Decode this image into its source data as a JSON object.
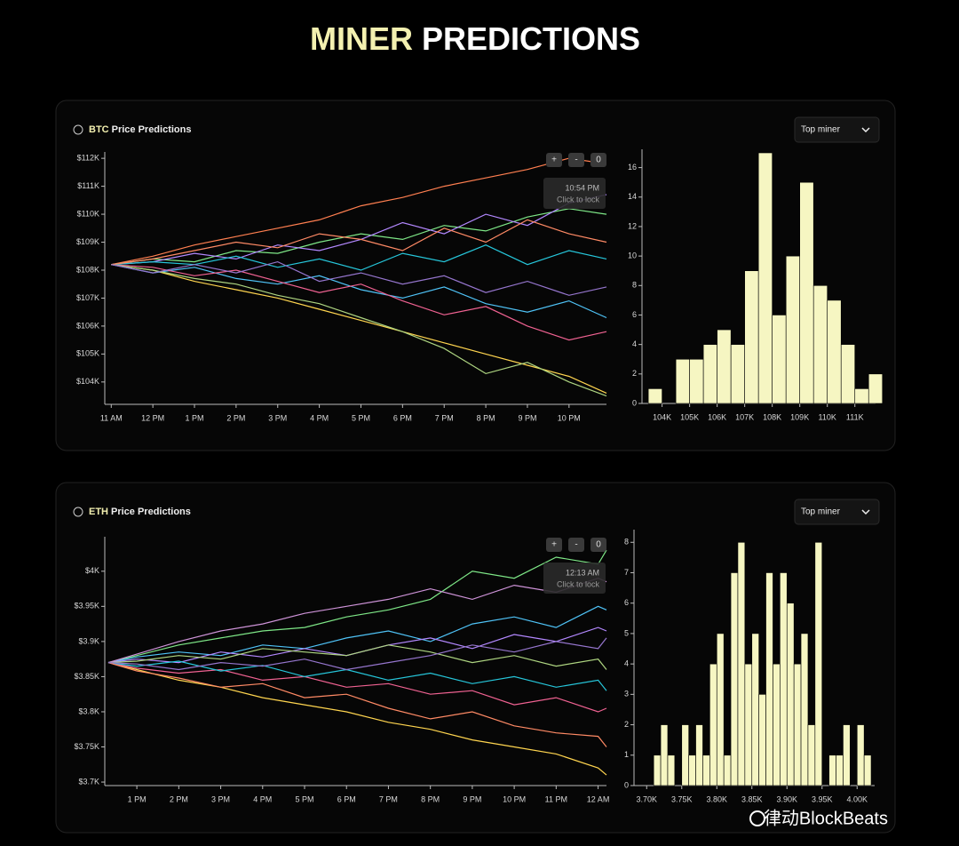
{
  "page": {
    "title_accent": "MINER",
    "title_rest": "PREDICTIONS",
    "watermark": "律动BlockBeats"
  },
  "panels": [
    {
      "label_accent": "BTC",
      "label_rest": "Price Predictions",
      "dropdown": "Top miner",
      "buttons": [
        "+",
        "-",
        "0"
      ],
      "tooltip_time": "10:54 PM",
      "tooltip_hint": "Click to lock"
    },
    {
      "label_accent": "ETH",
      "label_rest": "Price Predictions",
      "dropdown": "Top miner",
      "buttons": [
        "+",
        "-",
        "0"
      ],
      "tooltip_time": "12:13 AM",
      "tooltip_hint": "Click to lock"
    }
  ],
  "chart_data": [
    {
      "type": "line",
      "x": [
        11,
        12,
        13,
        14,
        15,
        16,
        17,
        18,
        19,
        20,
        21,
        22,
        22.9
      ],
      "xlim": [
        10.93,
        22.9
      ],
      "ylim": [
        103200,
        112100
      ],
      "xticks": [
        {
          "value": 11,
          "label": "11 AM"
        },
        {
          "value": 12,
          "label": "12 PM"
        },
        {
          "value": 13,
          "label": "1 PM"
        },
        {
          "value": 14,
          "label": "2 PM"
        },
        {
          "value": 15,
          "label": "3 PM"
        },
        {
          "value": 16,
          "label": "4 PM"
        },
        {
          "value": 17,
          "label": "5 PM"
        },
        {
          "value": 18,
          "label": "6 PM"
        },
        {
          "value": 19,
          "label": "7 PM"
        },
        {
          "value": 20,
          "label": "8 PM"
        },
        {
          "value": 21,
          "label": "9 PM"
        },
        {
          "value": 22,
          "label": "10 PM"
        }
      ],
      "yticks": [
        {
          "value": 104000,
          "label": "$104K"
        },
        {
          "value": 105000,
          "label": "$105K"
        },
        {
          "value": 106000,
          "label": "$106K"
        },
        {
          "value": 107000,
          "label": "$107K"
        },
        {
          "value": 108000,
          "label": "$108K"
        },
        {
          "value": 109000,
          "label": "$109K"
        },
        {
          "value": 110000,
          "label": "$110K"
        },
        {
          "value": 111000,
          "label": "$111K"
        },
        {
          "value": 112000,
          "label": "$112K"
        }
      ],
      "series": [
        {
          "color": "#ff7f50",
          "values": [
            108200,
            108500,
            108900,
            109200,
            109500,
            109800,
            110300,
            110600,
            111000,
            111300,
            111600,
            112000,
            111800
          ]
        },
        {
          "color": "#ffd54f",
          "values": [
            108200,
            108000,
            107600,
            107300,
            107000,
            106600,
            106200,
            105800,
            105400,
            105000,
            104600,
            104200,
            103600
          ]
        },
        {
          "color": "#7ee787",
          "values": [
            108200,
            108400,
            108300,
            108700,
            108600,
            109000,
            109300,
            109100,
            109600,
            109400,
            109900,
            110200,
            110000
          ]
        },
        {
          "color": "#4fc3f7",
          "values": [
            108200,
            107900,
            108100,
            107700,
            107500,
            107800,
            107300,
            107000,
            107400,
            106800,
            106500,
            106900,
            106300
          ]
        },
        {
          "color": "#b388ff",
          "values": [
            108200,
            108300,
            108600,
            108400,
            108900,
            108700,
            109100,
            109700,
            109300,
            110000,
            109600,
            110400,
            110700
          ]
        },
        {
          "color": "#f06292",
          "values": [
            108200,
            108100,
            107800,
            108000,
            107600,
            107200,
            107500,
            106900,
            106400,
            106700,
            106000,
            105500,
            105800
          ]
        },
        {
          "color": "#26c6da",
          "values": [
            108200,
            108300,
            108200,
            108500,
            108100,
            108400,
            108000,
            108600,
            108300,
            108900,
            108200,
            108700,
            108400
          ]
        },
        {
          "color": "#aed581",
          "values": [
            108200,
            108000,
            107700,
            107500,
            107100,
            106800,
            106300,
            105800,
            105200,
            104300,
            104700,
            104000,
            103500
          ]
        },
        {
          "color": "#ff8a65",
          "values": [
            108200,
            108400,
            108700,
            109000,
            108800,
            109300,
            109100,
            108700,
            109500,
            109000,
            109800,
            109300,
            109000
          ]
        },
        {
          "color": "#9575cd",
          "values": [
            108200,
            107900,
            108200,
            107900,
            108300,
            107600,
            107900,
            107500,
            107800,
            107200,
            107600,
            107100,
            107400
          ]
        }
      ]
    },
    {
      "type": "histogram",
      "color": "#f6f6c2",
      "bins": [
        103500,
        104000,
        104500,
        105000,
        105500,
        106000,
        106500,
        107000,
        107500,
        108000,
        108500,
        109000,
        109500,
        110000,
        110500,
        111000,
        111500,
        112000
      ],
      "values": [
        1,
        0,
        3,
        3,
        4,
        5,
        4,
        9,
        17,
        6,
        10,
        15,
        8,
        7,
        4,
        1,
        2
      ],
      "xlim": [
        103400,
        111750
      ],
      "ylim": [
        0,
        17
      ],
      "xticks": [
        {
          "value": 104000,
          "label": "104K"
        },
        {
          "value": 105000,
          "label": "105K"
        },
        {
          "value": 106000,
          "label": "106K"
        },
        {
          "value": 107000,
          "label": "107K"
        },
        {
          "value": 108000,
          "label": "108K"
        },
        {
          "value": 109000,
          "label": "109K"
        },
        {
          "value": 110000,
          "label": "110K"
        },
        {
          "value": 111000,
          "label": "111K"
        }
      ],
      "yticks": [
        0,
        2,
        4,
        6,
        8,
        10,
        12,
        14,
        16
      ]
    },
    {
      "type": "line",
      "x": [
        12.32,
        13,
        14,
        15,
        16,
        17,
        18,
        19,
        20,
        21,
        22,
        23,
        24,
        24.2
      ],
      "xlim": [
        12.32,
        24.2
      ],
      "ylim": [
        3695,
        4044
      ],
      "xticks": [
        {
          "value": 13,
          "label": "1 PM"
        },
        {
          "value": 14,
          "label": "2 PM"
        },
        {
          "value": 15,
          "label": "3 PM"
        },
        {
          "value": 16,
          "label": "4 PM"
        },
        {
          "value": 17,
          "label": "5 PM"
        },
        {
          "value": 18,
          "label": "6 PM"
        },
        {
          "value": 19,
          "label": "7 PM"
        },
        {
          "value": 20,
          "label": "8 PM"
        },
        {
          "value": 21,
          "label": "9 PM"
        },
        {
          "value": 22,
          "label": "10 PM"
        },
        {
          "value": 23,
          "label": "11 PM"
        },
        {
          "value": 24,
          "label": "12 AM"
        }
      ],
      "yticks": [
        {
          "value": 3700,
          "label": "$3.7K"
        },
        {
          "value": 3750,
          "label": "$3.75K"
        },
        {
          "value": 3800,
          "label": "$3.8K"
        },
        {
          "value": 3850,
          "label": "$3.85K"
        },
        {
          "value": 3900,
          "label": "$3.9K"
        },
        {
          "value": 3950,
          "label": "$3.95K"
        },
        {
          "value": 4000,
          "label": "$4K"
        }
      ],
      "series": [
        {
          "color": "#7ee787",
          "values": [
            3870,
            3880,
            3895,
            3905,
            3915,
            3920,
            3935,
            3945,
            3960,
            4000,
            3990,
            4020,
            4010,
            4030
          ]
        },
        {
          "color": "#ffd54f",
          "values": [
            3870,
            3860,
            3845,
            3835,
            3820,
            3810,
            3800,
            3785,
            3775,
            3760,
            3750,
            3740,
            3720,
            3710
          ]
        },
        {
          "color": "#4fc3f7",
          "values": [
            3870,
            3878,
            3885,
            3880,
            3895,
            3890,
            3905,
            3915,
            3900,
            3925,
            3935,
            3920,
            3950,
            3945
          ]
        },
        {
          "color": "#f06292",
          "values": [
            3870,
            3862,
            3855,
            3860,
            3845,
            3850,
            3835,
            3840,
            3825,
            3830,
            3810,
            3820,
            3800,
            3805
          ]
        },
        {
          "color": "#b388ff",
          "values": [
            3870,
            3875,
            3870,
            3885,
            3878,
            3890,
            3880,
            3895,
            3905,
            3890,
            3910,
            3900,
            3920,
            3915
          ]
        },
        {
          "color": "#26c6da",
          "values": [
            3870,
            3865,
            3872,
            3858,
            3866,
            3850,
            3860,
            3845,
            3855,
            3840,
            3850,
            3835,
            3845,
            3830
          ]
        },
        {
          "color": "#ce93d8",
          "values": [
            3870,
            3882,
            3900,
            3915,
            3925,
            3940,
            3950,
            3960,
            3975,
            3960,
            3980,
            3970,
            3990,
            3985
          ]
        },
        {
          "color": "#ff8a65",
          "values": [
            3870,
            3858,
            3848,
            3835,
            3840,
            3820,
            3825,
            3805,
            3790,
            3800,
            3780,
            3770,
            3765,
            3750
          ]
        },
        {
          "color": "#aed581",
          "values": [
            3870,
            3872,
            3880,
            3875,
            3890,
            3885,
            3880,
            3895,
            3885,
            3870,
            3880,
            3865,
            3875,
            3860
          ]
        },
        {
          "color": "#9575cd",
          "values": [
            3870,
            3868,
            3860,
            3870,
            3865,
            3875,
            3860,
            3870,
            3880,
            3895,
            3885,
            3900,
            3890,
            3905
          ]
        }
      ]
    },
    {
      "type": "histogram",
      "color": "#f6f6c2",
      "bins": [
        3710,
        3720,
        3730,
        3740,
        3750,
        3760,
        3770,
        3780,
        3790,
        3800,
        3810,
        3820,
        3830,
        3840,
        3850,
        3860,
        3870,
        3880,
        3890,
        3900,
        3910,
        3920,
        3930,
        3940,
        3950,
        3960,
        3970,
        3980,
        3990,
        4000,
        4010,
        4020
      ],
      "values": [
        1,
        2,
        1,
        0,
        2,
        1,
        2,
        1,
        4,
        5,
        1,
        7,
        8,
        4,
        5,
        3,
        7,
        4,
        7,
        6,
        4,
        5,
        2,
        8,
        0,
        1,
        1,
        2,
        0,
        2,
        1
      ],
      "xlim": [
        3687,
        4025
      ],
      "ylim": [
        0,
        8.3
      ],
      "xticks": [
        {
          "value": 3700,
          "label": "3.70K"
        },
        {
          "value": 3750,
          "label": "3.75K"
        },
        {
          "value": 3800,
          "label": "3.80K"
        },
        {
          "value": 3850,
          "label": "3.85K"
        },
        {
          "value": 3900,
          "label": "3.90K"
        },
        {
          "value": 3950,
          "label": "3.95K"
        },
        {
          "value": 4000,
          "label": "4.00K"
        }
      ],
      "yticks": [
        0,
        1,
        2,
        3,
        4,
        5,
        6,
        7,
        8
      ]
    }
  ]
}
